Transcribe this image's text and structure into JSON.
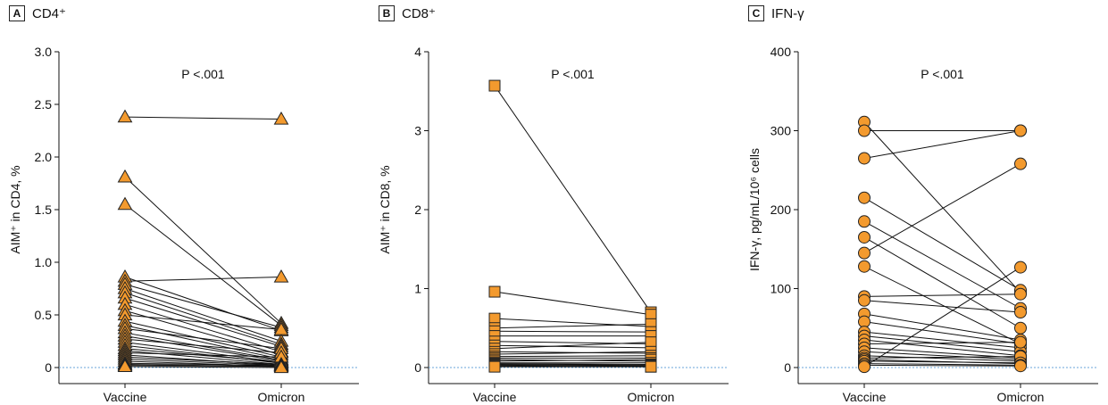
{
  "chart_data": [
    {
      "type": "line",
      "panel_letter": "A",
      "title": "CD4⁺",
      "ylabel": "AIM⁺ in CD4, %",
      "categories": [
        "Vaccine",
        "Omicron"
      ],
      "ylim": [
        0,
        3.0
      ],
      "yticks": [
        "0",
        "0.5",
        "1.0",
        "1.5",
        "2.0",
        "2.5",
        "3.0"
      ],
      "ytick_values": [
        0,
        0.5,
        1.0,
        1.5,
        2.0,
        2.5,
        3.0
      ],
      "annotation": "P <.001",
      "marker": "triangle",
      "marker_color": "#F39A2E",
      "pairs": [
        [
          2.38,
          2.36
        ],
        [
          1.81,
          0.42
        ],
        [
          1.55,
          0.4
        ],
        [
          0.86,
          0.35
        ],
        [
          0.82,
          0.86
        ],
        [
          0.79,
          0.38
        ],
        [
          0.75,
          0.25
        ],
        [
          0.71,
          0.22
        ],
        [
          0.66,
          0.2
        ],
        [
          0.6,
          0.15
        ],
        [
          0.54,
          0.12
        ],
        [
          0.5,
          0.36
        ],
        [
          0.44,
          0.1
        ],
        [
          0.4,
          0.08
        ],
        [
          0.37,
          0.18
        ],
        [
          0.33,
          0.07
        ],
        [
          0.3,
          0.06
        ],
        [
          0.27,
          0.14
        ],
        [
          0.24,
          0.05
        ],
        [
          0.21,
          0.04
        ],
        [
          0.18,
          0.05
        ],
        [
          0.16,
          0.03
        ],
        [
          0.14,
          0.1
        ],
        [
          0.12,
          0.02
        ],
        [
          0.1,
          0.03
        ],
        [
          0.08,
          0.02
        ],
        [
          0.06,
          0.01
        ],
        [
          0.04,
          0.02
        ],
        [
          0.03,
          0.01
        ],
        [
          0.02,
          0.01
        ],
        [
          0.01,
          0.0
        ]
      ]
    },
    {
      "type": "line",
      "panel_letter": "B",
      "title": "CD8⁺",
      "ylabel": "AIM⁺ in CD8, %",
      "categories": [
        "Vaccine",
        "Omicron"
      ],
      "ylim": [
        0,
        4
      ],
      "yticks": [
        "0",
        "1",
        "2",
        "3",
        "4"
      ],
      "ytick_values": [
        0,
        1,
        2,
        3,
        4
      ],
      "annotation": "P <.001",
      "marker": "square",
      "marker_color": "#F39A2E",
      "pairs": [
        [
          3.57,
          0.7
        ],
        [
          0.96,
          0.67
        ],
        [
          0.62,
          0.52
        ],
        [
          0.5,
          0.55
        ],
        [
          0.46,
          0.45
        ],
        [
          0.4,
          0.4
        ],
        [
          0.33,
          0.3
        ],
        [
          0.28,
          0.25
        ],
        [
          0.24,
          0.32
        ],
        [
          0.2,
          0.18
        ],
        [
          0.17,
          0.2
        ],
        [
          0.14,
          0.15
        ],
        [
          0.12,
          0.12
        ],
        [
          0.1,
          0.08
        ],
        [
          0.08,
          0.1
        ],
        [
          0.06,
          0.06
        ],
        [
          0.05,
          0.04
        ],
        [
          0.04,
          0.03
        ],
        [
          0.03,
          0.02
        ],
        [
          0.02,
          0.01
        ],
        [
          0.01,
          0.01
        ]
      ]
    },
    {
      "type": "line",
      "panel_letter": "C",
      "title": "IFN-γ",
      "ylabel": "IFN-γ, pg/mL/10⁶ cells",
      "categories": [
        "Vaccine",
        "Omicron"
      ],
      "ylim": [
        0,
        400
      ],
      "yticks": [
        "0",
        "100",
        "200",
        "300",
        "400"
      ],
      "ytick_values": [
        0,
        100,
        200,
        300,
        400
      ],
      "annotation": "P <.001",
      "marker": "circle",
      "marker_color": "#F39A2E",
      "pairs": [
        [
          311,
          95
        ],
        [
          300,
          300
        ],
        [
          265,
          300
        ],
        [
          215,
          98
        ],
        [
          185,
          75
        ],
        [
          165,
          50
        ],
        [
          145,
          258
        ],
        [
          128,
          30
        ],
        [
          90,
          93
        ],
        [
          85,
          70
        ],
        [
          68,
          35
        ],
        [
          58,
          30
        ],
        [
          45,
          25
        ],
        [
          40,
          20
        ],
        [
          35,
          15
        ],
        [
          30,
          32
        ],
        [
          25,
          12
        ],
        [
          20,
          10
        ],
        [
          15,
          8
        ],
        [
          12,
          14
        ],
        [
          10,
          5
        ],
        [
          8,
          6
        ],
        [
          5,
          3
        ],
        [
          3,
          2
        ],
        [
          1,
          127
        ]
      ]
    }
  ]
}
